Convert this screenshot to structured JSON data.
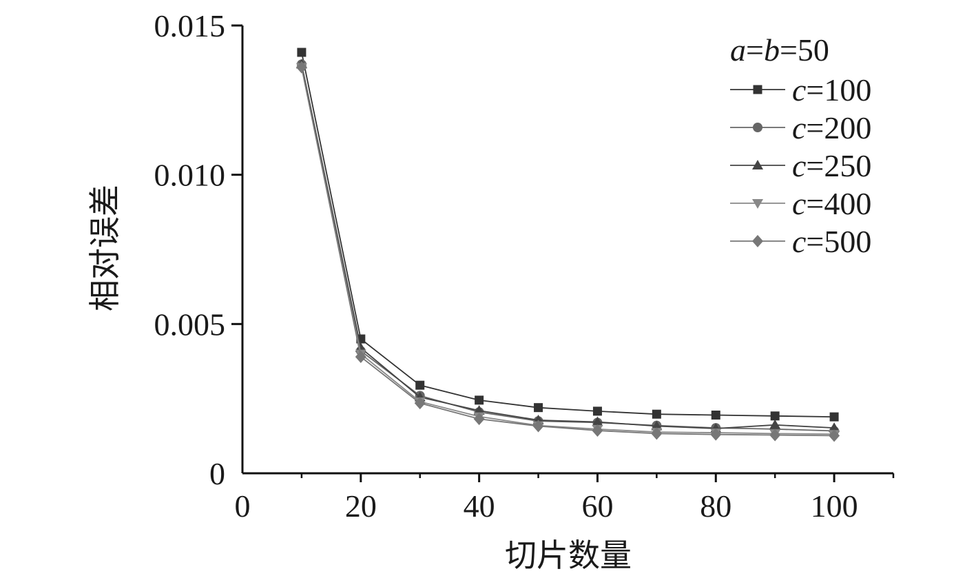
{
  "chart_data": {
    "type": "line",
    "xlabel": "切片数量",
    "ylabel": "相对误差",
    "xlim": [
      0,
      110
    ],
    "ylim": [
      0,
      0.015
    ],
    "x_ticks": [
      0,
      20,
      40,
      60,
      80,
      100
    ],
    "y_ticks": [
      0,
      0.005,
      0.01,
      0.015
    ],
    "x_tick_labels": [
      "0",
      "20",
      "40",
      "60",
      "80",
      "100"
    ],
    "y_tick_labels": [
      "0",
      "0.005",
      "0.010",
      "0.015"
    ],
    "grid": false,
    "legend_placement": "top-right",
    "legend_title": {
      "a": "a",
      "eq1": "=",
      "b": "b",
      "eq2": "=50"
    },
    "x": [
      10,
      20,
      30,
      40,
      50,
      60,
      70,
      80,
      90,
      100
    ],
    "series": [
      {
        "name": "c=100",
        "name_var": "c",
        "name_val": "=100",
        "marker": "square",
        "color": "#333333",
        "values": [
          0.0141,
          0.0045,
          0.00295,
          0.00245,
          0.0022,
          0.00208,
          0.00198,
          0.00195,
          0.00192,
          0.00189
        ]
      },
      {
        "name": "c=200",
        "name_var": "c",
        "name_val": "=200",
        "marker": "circle",
        "color": "#666666",
        "values": [
          0.0137,
          0.0041,
          0.0026,
          0.00205,
          0.00175,
          0.0017,
          0.0016,
          0.00152,
          0.00148,
          0.00142
        ]
      },
      {
        "name": "c=250",
        "name_var": "c",
        "name_val": "=250",
        "marker": "triangle-up",
        "color": "#444444",
        "values": [
          0.0137,
          0.0042,
          0.00255,
          0.0021,
          0.00178,
          0.00172,
          0.00158,
          0.0015,
          0.00162,
          0.00152
        ]
      },
      {
        "name": "c=400",
        "name_var": "c",
        "name_val": "=400",
        "marker": "triangle-down",
        "color": "#888888",
        "values": [
          0.0136,
          0.004,
          0.0024,
          0.0019,
          0.0016,
          0.00148,
          0.00138,
          0.00136,
          0.00133,
          0.00131
        ]
      },
      {
        "name": "c=500",
        "name_var": "c",
        "name_val": "=500",
        "marker": "diamond",
        "color": "#777777",
        "values": [
          0.0136,
          0.0039,
          0.00235,
          0.00182,
          0.00158,
          0.00143,
          0.00133,
          0.0013,
          0.00128,
          0.00126
        ]
      }
    ]
  }
}
